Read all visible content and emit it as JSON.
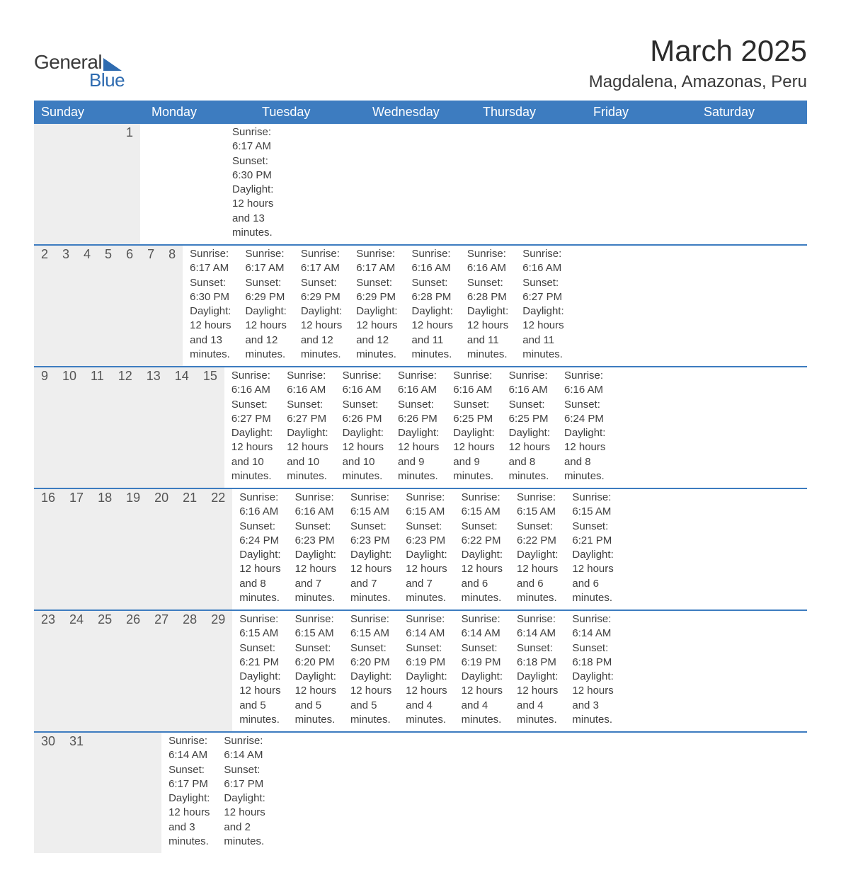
{
  "brand": {
    "name_part1": "General",
    "name_part2": "Blue",
    "accent_color": "#2e6bb0"
  },
  "title": "March 2025",
  "location": "Magdalena, Amazonas, Peru",
  "colors": {
    "header_bg": "#3d7cc0",
    "header_fg": "#ffffff",
    "daynum_bg": "#eeeeee",
    "text": "#404040",
    "row_divider": "#3d7cc0",
    "page_bg": "#ffffff"
  },
  "typography": {
    "title_fontsize": 42,
    "location_fontsize": 24,
    "weekday_fontsize": 18,
    "daynum_fontsize": 18,
    "details_fontsize": 15
  },
  "layout": {
    "columns": 7,
    "weeks": 6
  },
  "weekdays": [
    "Sunday",
    "Monday",
    "Tuesday",
    "Wednesday",
    "Thursday",
    "Friday",
    "Saturday"
  ],
  "weeks": [
    [
      null,
      null,
      null,
      null,
      null,
      null,
      {
        "d": "1",
        "sunrise": "Sunrise: 6:17 AM",
        "sunset": "Sunset: 6:30 PM",
        "daylight1": "Daylight: 12 hours",
        "daylight2": "and 13 minutes."
      }
    ],
    [
      {
        "d": "2",
        "sunrise": "Sunrise: 6:17 AM",
        "sunset": "Sunset: 6:30 PM",
        "daylight1": "Daylight: 12 hours",
        "daylight2": "and 13 minutes."
      },
      {
        "d": "3",
        "sunrise": "Sunrise: 6:17 AM",
        "sunset": "Sunset: 6:29 PM",
        "daylight1": "Daylight: 12 hours",
        "daylight2": "and 12 minutes."
      },
      {
        "d": "4",
        "sunrise": "Sunrise: 6:17 AM",
        "sunset": "Sunset: 6:29 PM",
        "daylight1": "Daylight: 12 hours",
        "daylight2": "and 12 minutes."
      },
      {
        "d": "5",
        "sunrise": "Sunrise: 6:17 AM",
        "sunset": "Sunset: 6:29 PM",
        "daylight1": "Daylight: 12 hours",
        "daylight2": "and 12 minutes."
      },
      {
        "d": "6",
        "sunrise": "Sunrise: 6:16 AM",
        "sunset": "Sunset: 6:28 PM",
        "daylight1": "Daylight: 12 hours",
        "daylight2": "and 11 minutes."
      },
      {
        "d": "7",
        "sunrise": "Sunrise: 6:16 AM",
        "sunset": "Sunset: 6:28 PM",
        "daylight1": "Daylight: 12 hours",
        "daylight2": "and 11 minutes."
      },
      {
        "d": "8",
        "sunrise": "Sunrise: 6:16 AM",
        "sunset": "Sunset: 6:27 PM",
        "daylight1": "Daylight: 12 hours",
        "daylight2": "and 11 minutes."
      }
    ],
    [
      {
        "d": "9",
        "sunrise": "Sunrise: 6:16 AM",
        "sunset": "Sunset: 6:27 PM",
        "daylight1": "Daylight: 12 hours",
        "daylight2": "and 10 minutes."
      },
      {
        "d": "10",
        "sunrise": "Sunrise: 6:16 AM",
        "sunset": "Sunset: 6:27 PM",
        "daylight1": "Daylight: 12 hours",
        "daylight2": "and 10 minutes."
      },
      {
        "d": "11",
        "sunrise": "Sunrise: 6:16 AM",
        "sunset": "Sunset: 6:26 PM",
        "daylight1": "Daylight: 12 hours",
        "daylight2": "and 10 minutes."
      },
      {
        "d": "12",
        "sunrise": "Sunrise: 6:16 AM",
        "sunset": "Sunset: 6:26 PM",
        "daylight1": "Daylight: 12 hours",
        "daylight2": "and 9 minutes."
      },
      {
        "d": "13",
        "sunrise": "Sunrise: 6:16 AM",
        "sunset": "Sunset: 6:25 PM",
        "daylight1": "Daylight: 12 hours",
        "daylight2": "and 9 minutes."
      },
      {
        "d": "14",
        "sunrise": "Sunrise: 6:16 AM",
        "sunset": "Sunset: 6:25 PM",
        "daylight1": "Daylight: 12 hours",
        "daylight2": "and 8 minutes."
      },
      {
        "d": "15",
        "sunrise": "Sunrise: 6:16 AM",
        "sunset": "Sunset: 6:24 PM",
        "daylight1": "Daylight: 12 hours",
        "daylight2": "and 8 minutes."
      }
    ],
    [
      {
        "d": "16",
        "sunrise": "Sunrise: 6:16 AM",
        "sunset": "Sunset: 6:24 PM",
        "daylight1": "Daylight: 12 hours",
        "daylight2": "and 8 minutes."
      },
      {
        "d": "17",
        "sunrise": "Sunrise: 6:16 AM",
        "sunset": "Sunset: 6:23 PM",
        "daylight1": "Daylight: 12 hours",
        "daylight2": "and 7 minutes."
      },
      {
        "d": "18",
        "sunrise": "Sunrise: 6:15 AM",
        "sunset": "Sunset: 6:23 PM",
        "daylight1": "Daylight: 12 hours",
        "daylight2": "and 7 minutes."
      },
      {
        "d": "19",
        "sunrise": "Sunrise: 6:15 AM",
        "sunset": "Sunset: 6:23 PM",
        "daylight1": "Daylight: 12 hours",
        "daylight2": "and 7 minutes."
      },
      {
        "d": "20",
        "sunrise": "Sunrise: 6:15 AM",
        "sunset": "Sunset: 6:22 PM",
        "daylight1": "Daylight: 12 hours",
        "daylight2": "and 6 minutes."
      },
      {
        "d": "21",
        "sunrise": "Sunrise: 6:15 AM",
        "sunset": "Sunset: 6:22 PM",
        "daylight1": "Daylight: 12 hours",
        "daylight2": "and 6 minutes."
      },
      {
        "d": "22",
        "sunrise": "Sunrise: 6:15 AM",
        "sunset": "Sunset: 6:21 PM",
        "daylight1": "Daylight: 12 hours",
        "daylight2": "and 6 minutes."
      }
    ],
    [
      {
        "d": "23",
        "sunrise": "Sunrise: 6:15 AM",
        "sunset": "Sunset: 6:21 PM",
        "daylight1": "Daylight: 12 hours",
        "daylight2": "and 5 minutes."
      },
      {
        "d": "24",
        "sunrise": "Sunrise: 6:15 AM",
        "sunset": "Sunset: 6:20 PM",
        "daylight1": "Daylight: 12 hours",
        "daylight2": "and 5 minutes."
      },
      {
        "d": "25",
        "sunrise": "Sunrise: 6:15 AM",
        "sunset": "Sunset: 6:20 PM",
        "daylight1": "Daylight: 12 hours",
        "daylight2": "and 5 minutes."
      },
      {
        "d": "26",
        "sunrise": "Sunrise: 6:14 AM",
        "sunset": "Sunset: 6:19 PM",
        "daylight1": "Daylight: 12 hours",
        "daylight2": "and 4 minutes."
      },
      {
        "d": "27",
        "sunrise": "Sunrise: 6:14 AM",
        "sunset": "Sunset: 6:19 PM",
        "daylight1": "Daylight: 12 hours",
        "daylight2": "and 4 minutes."
      },
      {
        "d": "28",
        "sunrise": "Sunrise: 6:14 AM",
        "sunset": "Sunset: 6:18 PM",
        "daylight1": "Daylight: 12 hours",
        "daylight2": "and 4 minutes."
      },
      {
        "d": "29",
        "sunrise": "Sunrise: 6:14 AM",
        "sunset": "Sunset: 6:18 PM",
        "daylight1": "Daylight: 12 hours",
        "daylight2": "and 3 minutes."
      }
    ],
    [
      {
        "d": "30",
        "sunrise": "Sunrise: 6:14 AM",
        "sunset": "Sunset: 6:17 PM",
        "daylight1": "Daylight: 12 hours",
        "daylight2": "and 3 minutes."
      },
      {
        "d": "31",
        "sunrise": "Sunrise: 6:14 AM",
        "sunset": "Sunset: 6:17 PM",
        "daylight1": "Daylight: 12 hours",
        "daylight2": "and 2 minutes."
      },
      null,
      null,
      null,
      null,
      null
    ]
  ]
}
